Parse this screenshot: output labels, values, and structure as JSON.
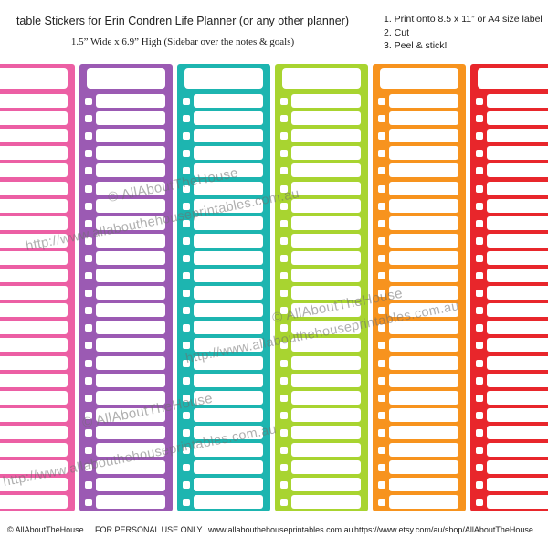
{
  "header": {
    "title": "table Stickers for Erin Condren Life Planner (or any other planner)",
    "subtitle": "1.5” Wide x 6.9” High (Sidebar over the notes & goals)",
    "instructions": [
      "1. Print onto 8.5 x 11” or A4 size label",
      "2. Cut",
      "3. Peel & stick!"
    ]
  },
  "columns": [
    {
      "color": "#EC5FA4",
      "has_dots": false
    },
    {
      "color": "#9B5AB3",
      "has_dots": true
    },
    {
      "color": "#1DB5B0",
      "has_dots": true
    },
    {
      "color": "#A8D430",
      "has_dots": true
    },
    {
      "color": "#F7931E",
      "has_dots": true
    },
    {
      "color": "#E8262B",
      "has_dots": true
    }
  ],
  "rows_per_column": 24,
  "watermarks": [
    {
      "text": "© AllAboutTheHouse"
    },
    {
      "text": "http://www.allabouthehouseprintables.com.au"
    },
    {
      "text": "© AllAboutTheHouse"
    },
    {
      "text": "http://www.allabouthehouseprintables.com.au"
    },
    {
      "text": "© AllAboutTheHouse"
    },
    {
      "text": "http://www.allabouthehouseprintables.com.au"
    }
  ],
  "footer": {
    "copyright": "© AllAboutTheHouse",
    "personal": "FOR PERSONAL USE ONLY",
    "website": "www.allabouthehouseprintables.com.au",
    "shop": "https://www.etsy.com/au/shop/AllAboutTheHouse"
  }
}
